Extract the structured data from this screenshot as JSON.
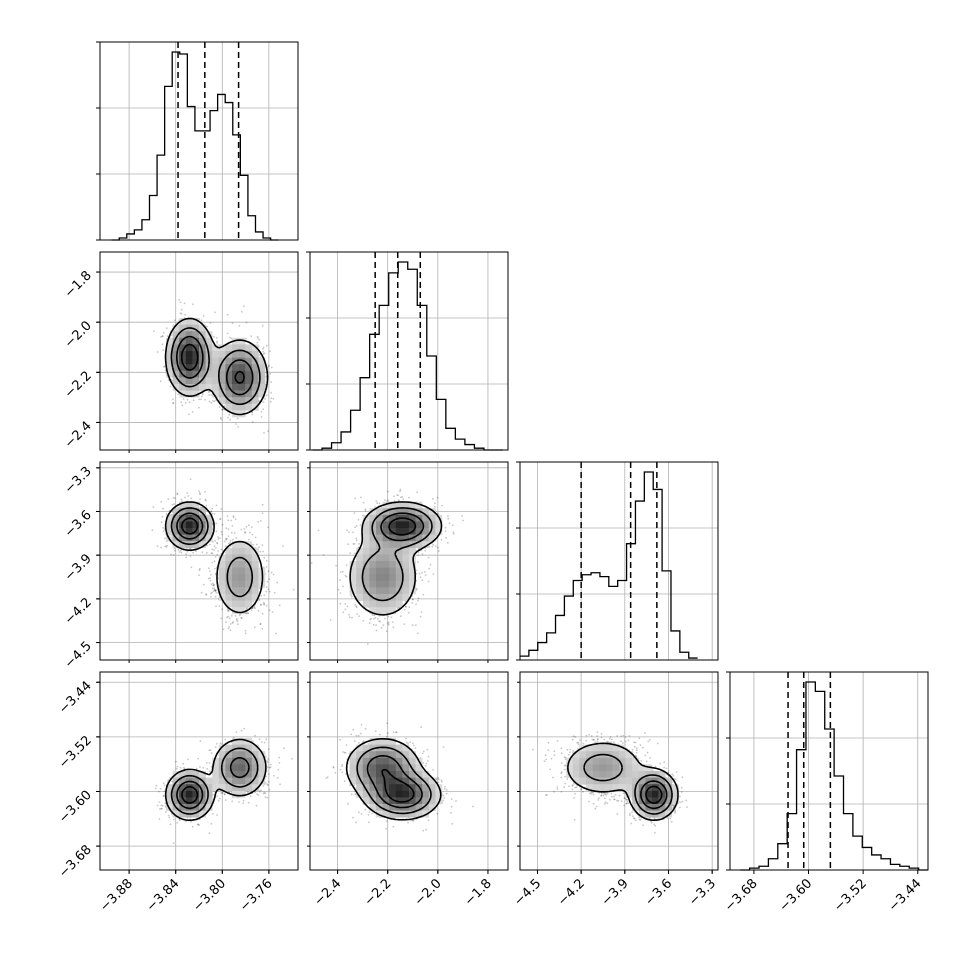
{
  "chart_data": {
    "type": "corner",
    "grid": true,
    "parameters": [
      {
        "range": [
          -3.905,
          -3.735
        ],
        "ticks": [
          -3.88,
          -3.84,
          -3.8,
          -3.76
        ],
        "tick_labels": [
          "−3.88",
          "−3.84",
          "−3.80",
          "−3.76"
        ],
        "quantiles": [
          -3.838,
          -3.815,
          -3.786
        ]
      },
      {
        "range": [
          -2.51,
          -1.72
        ],
        "ticks": [
          -2.4,
          -2.2,
          -2.0,
          -1.8
        ],
        "tick_labels": [
          "−2.4",
          "−2.2",
          "−2.0",
          "−1.8"
        ],
        "quantiles": [
          -2.25,
          -2.16,
          -2.07
        ]
      },
      {
        "range": [
          -4.62,
          -3.26
        ],
        "ticks": [
          -4.5,
          -4.2,
          -3.9,
          -3.6,
          -3.3
        ],
        "tick_labels": [
          "−4.5",
          "−4.2",
          "−3.9",
          "−3.6",
          "−3.3"
        ],
        "quantiles": [
          -4.2,
          -3.86,
          -3.68
        ]
      },
      {
        "range": [
          -3.715,
          -3.425
        ],
        "ticks": [
          -3.68,
          -3.6,
          -3.52,
          -3.44
        ],
        "tick_labels": [
          "−3.68",
          "−3.60",
          "−3.52",
          "−3.44"
        ],
        "quantiles": [
          -3.63,
          -3.607,
          -3.568
        ]
      }
    ],
    "marginal_histograms": [
      {
        "bin_edges": [
          -3.895,
          -3.752
        ],
        "counts": [
          0,
          1,
          3,
          5,
          10,
          22,
          42,
          76,
          93,
          92,
          66,
          54,
          54,
          64,
          72,
          68,
          52,
          32,
          12,
          4,
          1,
          0
        ]
      },
      {
        "bin_edges": [
          -2.5,
          -1.74
        ],
        "counts": [
          0,
          1,
          4,
          10,
          22,
          40,
          64,
          80,
          98,
          104,
          100,
          80,
          52,
          28,
          12,
          6,
          3,
          1,
          0,
          0
        ]
      },
      {
        "bin_edges": [
          -4.62,
          -3.4
        ],
        "counts": [
          2,
          5,
          9,
          14,
          23,
          33,
          41,
          44,
          45,
          43,
          38,
          41,
          60,
          82,
          97,
          88,
          46,
          15,
          4,
          1
        ]
      },
      {
        "bin_edges": [
          -3.7,
          -3.425
        ],
        "counts": [
          0,
          1,
          2,
          6,
          14,
          30,
          64,
          100,
          95,
          75,
          50,
          30,
          18,
          12,
          8,
          6,
          3,
          2,
          1,
          0
        ]
      }
    ],
    "mixture_components": [
      {
        "weight": 0.5,
        "mean": [
          -3.828,
          -2.14,
          -3.7,
          -3.605
        ],
        "sd": [
          0.01,
          0.075,
          0.08,
          0.018
        ]
      },
      {
        "weight": 0.5,
        "mean": [
          -3.785,
          -2.22,
          -4.05,
          -3.565
        ],
        "sd": [
          0.012,
          0.075,
          0.15,
          0.022
        ]
      }
    ],
    "contour_levels": 4,
    "scatter": "grey density points"
  }
}
